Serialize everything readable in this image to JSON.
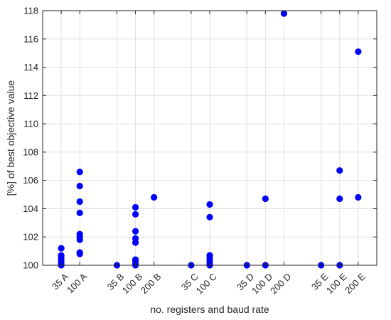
{
  "chart_data": {
    "type": "scatter",
    "title": "",
    "xlabel": "no. registers and baud rate",
    "ylabel": "[%] of best objective value",
    "ylim": [
      100,
      118
    ],
    "yticks": [
      100,
      102,
      104,
      106,
      108,
      110,
      112,
      114,
      116,
      118
    ],
    "grid": true,
    "categories": [
      "35 A",
      "100 A",
      "35 B",
      "100 B",
      "200 B",
      "35 C",
      "100 C",
      "35 D",
      "100 D",
      "200 D",
      "35 E",
      "100 E",
      "200 E"
    ],
    "category_positions": [
      1,
      2,
      4,
      5,
      6,
      8,
      9,
      11,
      12,
      13,
      15,
      16,
      17
    ],
    "xlim": [
      0,
      18
    ],
    "marker_color": "#0000FF",
    "series": [
      {
        "points": [
          {
            "x": "35 A",
            "y": 101.2
          },
          {
            "x": "35 A",
            "y": 100.7
          },
          {
            "x": "35 A",
            "y": 100.5
          },
          {
            "x": "35 A",
            "y": 100.3
          },
          {
            "x": "35 A",
            "y": 100.1
          },
          {
            "x": "35 A",
            "y": 100.0
          },
          {
            "x": "100 A",
            "y": 106.6
          },
          {
            "x": "100 A",
            "y": 105.6
          },
          {
            "x": "100 A",
            "y": 104.5
          },
          {
            "x": "100 A",
            "y": 103.7
          },
          {
            "x": "100 A",
            "y": 102.2
          },
          {
            "x": "100 A",
            "y": 102.0
          },
          {
            "x": "100 A",
            "y": 101.8
          },
          {
            "x": "100 A",
            "y": 100.9
          },
          {
            "x": "100 A",
            "y": 100.8
          },
          {
            "x": "35 B",
            "y": 100.0
          },
          {
            "x": "100 B",
            "y": 104.1
          },
          {
            "x": "100 B",
            "y": 103.6
          },
          {
            "x": "100 B",
            "y": 102.4
          },
          {
            "x": "100 B",
            "y": 101.9
          },
          {
            "x": "100 B",
            "y": 101.6
          },
          {
            "x": "100 B",
            "y": 100.4
          },
          {
            "x": "100 B",
            "y": 100.3
          },
          {
            "x": "100 B",
            "y": 100.1
          },
          {
            "x": "100 B",
            "y": 100.0
          },
          {
            "x": "200 B",
            "y": 104.8
          },
          {
            "x": "35 C",
            "y": 100.0
          },
          {
            "x": "100 C",
            "y": 104.3
          },
          {
            "x": "100 C",
            "y": 103.4
          },
          {
            "x": "100 C",
            "y": 100.7
          },
          {
            "x": "100 C",
            "y": 100.5
          },
          {
            "x": "100 C",
            "y": 100.3
          },
          {
            "x": "100 C",
            "y": 100.1
          },
          {
            "x": "100 C",
            "y": 100.0
          },
          {
            "x": "35 D",
            "y": 100.0
          },
          {
            "x": "100 D",
            "y": 104.7
          },
          {
            "x": "100 D",
            "y": 100.0
          },
          {
            "x": "200 D",
            "y": 117.8
          },
          {
            "x": "35 E",
            "y": 100.0
          },
          {
            "x": "100 E",
            "y": 106.7
          },
          {
            "x": "100 E",
            "y": 104.7
          },
          {
            "x": "100 E",
            "y": 100.0
          },
          {
            "x": "200 E",
            "y": 115.1
          },
          {
            "x": "200 E",
            "y": 104.8
          }
        ]
      }
    ]
  }
}
